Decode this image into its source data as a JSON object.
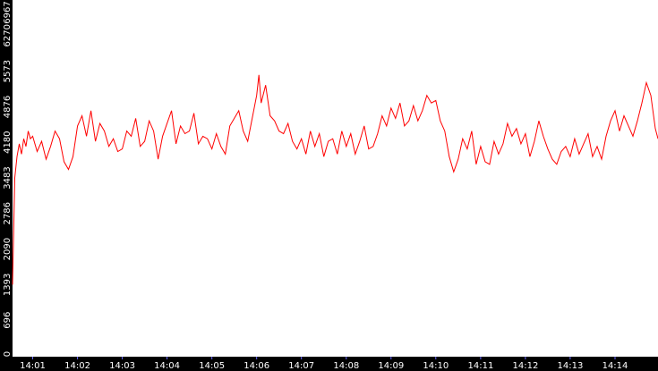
{
  "chart_data": {
    "type": "line",
    "title": "",
    "xlabel": "",
    "ylabel": "",
    "ylim": [
      0,
      6967
    ],
    "y_ticks": [
      "0",
      "696",
      "1393",
      "2090",
      "2786",
      "3483",
      "4180",
      "4876",
      "5573",
      "6270",
      "6967"
    ],
    "x_ticks": [
      "14:01",
      "14:02",
      "14:03",
      "14:04",
      "14:05",
      "14:06",
      "14:07",
      "14:08",
      "14:09",
      "14:10",
      "14:11",
      "14:12",
      "14:13",
      "14:14"
    ],
    "x_range_minutes": [
      0.55,
      14.96
    ],
    "grid": false,
    "colors": {
      "line": "#ff0000",
      "axis_band": "#000000",
      "tick_text": "#ffffff",
      "background": "#ffffff"
    },
    "series": [
      {
        "x": [
          0.55,
          0.6,
          0.65,
          0.7,
          0.75,
          0.8,
          0.85,
          0.9,
          0.95,
          1.0,
          1.1,
          1.2,
          1.3,
          1.4,
          1.5,
          1.6,
          1.7,
          1.8,
          1.9,
          2.0,
          2.1,
          2.2,
          2.3,
          2.4,
          2.5,
          2.6,
          2.7,
          2.8,
          2.9,
          3.0,
          3.1,
          3.2,
          3.3,
          3.4,
          3.5,
          3.6,
          3.7,
          3.8,
          3.9,
          4.0,
          4.1,
          4.2,
          4.3,
          4.4,
          4.5,
          4.6,
          4.7,
          4.8,
          4.9,
          5.0,
          5.1,
          5.2,
          5.3,
          5.4,
          5.5,
          5.6,
          5.7,
          5.8,
          5.9,
          6.0,
          6.05,
          6.1,
          6.2,
          6.3,
          6.4,
          6.5,
          6.6,
          6.7,
          6.8,
          6.9,
          7.0,
          7.1,
          7.2,
          7.3,
          7.4,
          7.5,
          7.6,
          7.7,
          7.8,
          7.9,
          8.0,
          8.1,
          8.2,
          8.3,
          8.4,
          8.5,
          8.6,
          8.7,
          8.8,
          8.9,
          9.0,
          9.1,
          9.2,
          9.3,
          9.4,
          9.5,
          9.6,
          9.7,
          9.8,
          9.9,
          10.0,
          10.1,
          10.2,
          10.3,
          10.4,
          10.5,
          10.6,
          10.7,
          10.8,
          10.9,
          11.0,
          11.1,
          11.2,
          11.3,
          11.4,
          11.5,
          11.6,
          11.7,
          11.8,
          11.9,
          12.0,
          12.1,
          12.2,
          12.3,
          12.4,
          12.5,
          12.6,
          12.7,
          12.8,
          12.9,
          13.0,
          13.1,
          13.2,
          13.3,
          13.4,
          13.5,
          13.6,
          13.7,
          13.8,
          13.9,
          14.0,
          14.1,
          14.2,
          14.3,
          14.4,
          14.5,
          14.6,
          14.7,
          14.8,
          14.9,
          14.96
        ],
        "values": [
          1393,
          3483,
          3900,
          4150,
          3950,
          4250,
          4100,
          4400,
          4250,
          4300,
          4000,
          4200,
          3850,
          4100,
          4400,
          4250,
          3800,
          3650,
          3900,
          4500,
          4700,
          4300,
          4800,
          4200,
          4550,
          4400,
          4100,
          4250,
          4000,
          4050,
          4400,
          4300,
          4650,
          4100,
          4200,
          4600,
          4400,
          3850,
          4300,
          4550,
          4800,
          4150,
          4500,
          4350,
          4400,
          4750,
          4150,
          4300,
          4250,
          4050,
          4350,
          4100,
          3950,
          4500,
          4650,
          4800,
          4400,
          4200,
          4650,
          5100,
          5500,
          4950,
          5300,
          4700,
          4600,
          4400,
          4350,
          4550,
          4200,
          4050,
          4250,
          3950,
          4400,
          4100,
          4350,
          3900,
          4200,
          4250,
          3950,
          4400,
          4100,
          4350,
          3950,
          4200,
          4500,
          4050,
          4100,
          4350,
          4700,
          4500,
          4850,
          4650,
          4950,
          4500,
          4600,
          4900,
          4600,
          4800,
          5100,
          4950,
          5000,
          4600,
          4400,
          3900,
          3600,
          3850,
          4250,
          4050,
          4400,
          3750,
          4100,
          3800,
          3750,
          4200,
          3950,
          4150,
          4550,
          4300,
          4450,
          4150,
          4350,
          3900,
          4200,
          4600,
          4300,
          4050,
          3850,
          3750,
          4000,
          4100,
          3900,
          4250,
          3950,
          4150,
          4350,
          3900,
          4100,
          3850,
          4300,
          4600,
          4800,
          4400,
          4700,
          4500,
          4300,
          4600,
          4950,
          5350,
          5100,
          4450,
          4250
        ]
      }
    ]
  }
}
